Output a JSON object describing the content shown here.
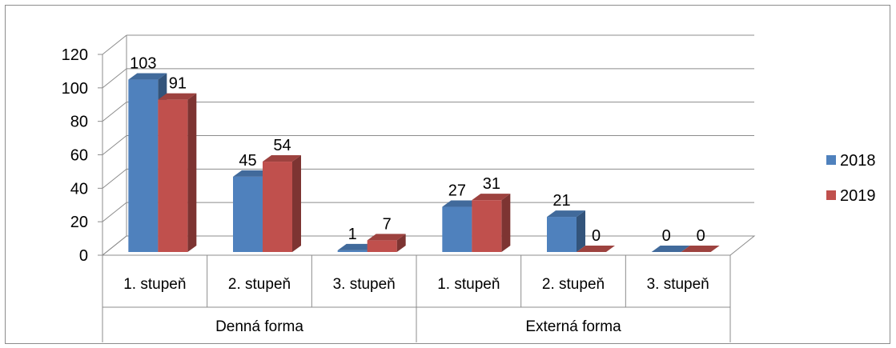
{
  "chart_data": {
    "type": "bar",
    "style": "3d-clustered-column",
    "groups": [
      {
        "label": "Denná forma",
        "categories": [
          "1. stupeň",
          "2. stupeň",
          "3. stupeň"
        ]
      },
      {
        "label": "Externá forma",
        "categories": [
          "1. stupeň",
          "2. stupeň",
          "3. stupeň"
        ]
      }
    ],
    "series": [
      {
        "name": "2018",
        "color": "#4f81bd",
        "values": [
          103,
          45,
          1,
          27,
          21,
          0
        ]
      },
      {
        "name": "2019",
        "color": "#c0504d",
        "values": [
          91,
          54,
          7,
          31,
          0,
          0
        ]
      }
    ],
    "ylim": [
      0,
      120
    ],
    "yticks": [
      0,
      20,
      40,
      60,
      80,
      100,
      120
    ],
    "grid": true,
    "legend_position": "right",
    "data_labels": true
  }
}
